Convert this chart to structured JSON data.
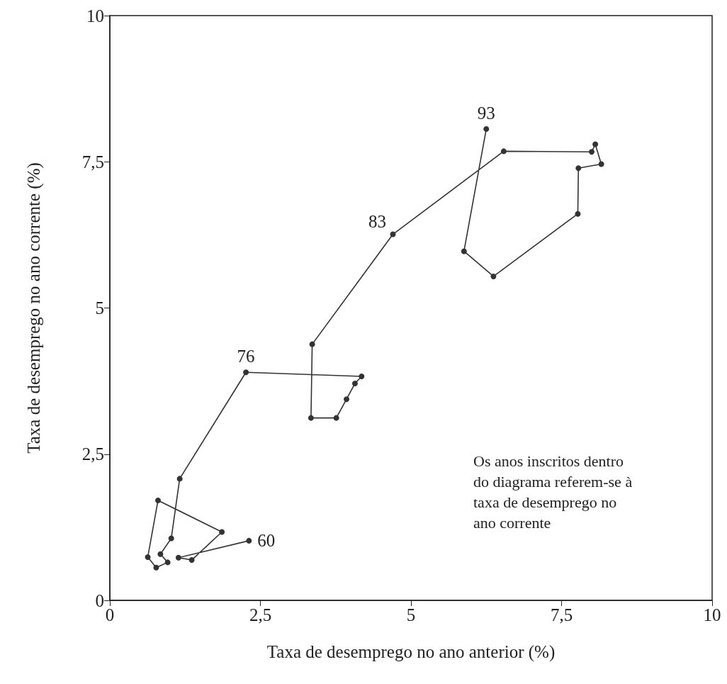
{
  "chart_data": {
    "type": "line",
    "xlabel": "Taxa de desemprego no ano anterior (%)",
    "ylabel": "Taxa de desemprego no ano corrente (%)",
    "xlim": [
      0,
      10
    ],
    "ylim": [
      0,
      10
    ],
    "xticks": [
      0,
      {
        "value": 2.5,
        "label": "2,5"
      },
      5,
      {
        "value": 7.5,
        "label": "7,5"
      },
      10
    ],
    "yticks": [
      0,
      {
        "value": 2.5,
        "label": "2,5"
      },
      5,
      {
        "value": 7.5,
        "label": "7,5"
      },
      10
    ],
    "grid": false,
    "marker": "circle",
    "line_style": "solid",
    "series": [
      {
        "color": "#333333",
        "x": [
          2.31,
          1.14,
          1.36,
          1.86,
          0.8,
          0.63,
          0.77,
          0.96,
          0.84,
          1.02,
          1.16,
          2.26,
          4.18,
          4.07,
          3.93,
          3.76,
          3.34,
          3.36,
          4.7,
          6.54,
          8.0,
          8.06,
          8.16,
          7.78,
          7.77,
          6.37,
          5.88,
          6.25
        ],
        "values": [
          1.02,
          0.73,
          0.69,
          1.17,
          1.71,
          0.74,
          0.56,
          0.65,
          0.79,
          1.06,
          2.08,
          3.9,
          3.83,
          3.71,
          3.44,
          3.12,
          3.12,
          4.38,
          6.26,
          7.68,
          7.67,
          7.8,
          7.46,
          7.39,
          6.61,
          5.54,
          5.97,
          8.06
        ]
      }
    ],
    "annotations": [
      {
        "text": "60",
        "x": 2.31,
        "y": 1.02
      },
      {
        "text": "76",
        "x": 2.26,
        "y": 3.9
      },
      {
        "text": "83",
        "x": 4.7,
        "y": 6.26
      },
      {
        "text": "93",
        "x": 6.25,
        "y": 8.06
      },
      "Os anos inscritos dentro\ndo diagrama referem-se à\ntaxa de desemprego no\nano corrente"
    ]
  }
}
